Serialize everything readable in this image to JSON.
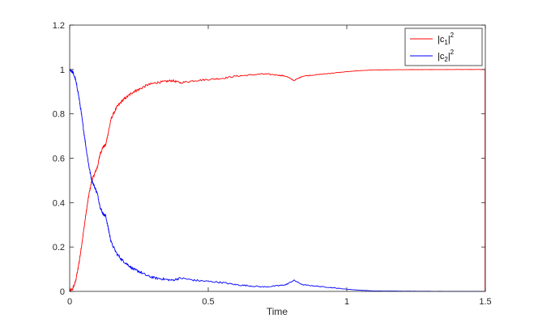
{
  "chart_data": {
    "type": "line",
    "title": "",
    "xlabel": "Time",
    "ylabel": "",
    "xlim": [
      0,
      1.5
    ],
    "ylim": [
      0,
      1.2
    ],
    "x_ticks": [
      "0",
      "0.5",
      "1",
      "1.5"
    ],
    "y_ticks": [
      "0",
      "0.2",
      "0.4",
      "0.6",
      "0.8",
      "1",
      "1.2"
    ],
    "grid": false,
    "legend_position": "top-right",
    "series": [
      {
        "name": "|c1|^2",
        "color": "#ff0000",
        "x": [
          0,
          0.01,
          0.02,
          0.03,
          0.04,
          0.05,
          0.06,
          0.07,
          0.08,
          0.09,
          0.1,
          0.11,
          0.12,
          0.13,
          0.14,
          0.15,
          0.17,
          0.19,
          0.21,
          0.23,
          0.25,
          0.28,
          0.31,
          0.34,
          0.37,
          0.4,
          0.45,
          0.5,
          0.55,
          0.6,
          0.65,
          0.7,
          0.75,
          0.78,
          0.81,
          0.84,
          0.88,
          0.92,
          0.96,
          1.0,
          1.05,
          1.1,
          1.2,
          1.3,
          1.4,
          1.499
        ],
        "y": [
          0.0,
          0.01,
          0.04,
          0.1,
          0.18,
          0.27,
          0.36,
          0.44,
          0.5,
          0.53,
          0.56,
          0.62,
          0.65,
          0.66,
          0.72,
          0.78,
          0.83,
          0.86,
          0.88,
          0.9,
          0.91,
          0.93,
          0.94,
          0.945,
          0.95,
          0.94,
          0.95,
          0.955,
          0.96,
          0.97,
          0.975,
          0.98,
          0.975,
          0.97,
          0.95,
          0.97,
          0.975,
          0.98,
          0.985,
          0.99,
          0.995,
          0.998,
          0.999,
          0.9995,
          0.9998,
          0.9999
        ]
      },
      {
        "name": "|c2|^2",
        "color": "#0000ff",
        "x": [
          0,
          0.01,
          0.02,
          0.03,
          0.04,
          0.05,
          0.06,
          0.07,
          0.08,
          0.09,
          0.1,
          0.11,
          0.12,
          0.13,
          0.14,
          0.15,
          0.17,
          0.19,
          0.21,
          0.23,
          0.25,
          0.28,
          0.31,
          0.34,
          0.37,
          0.4,
          0.45,
          0.5,
          0.55,
          0.6,
          0.65,
          0.7,
          0.75,
          0.78,
          0.81,
          0.84,
          0.88,
          0.92,
          0.96,
          1.0,
          1.05,
          1.1,
          1.2,
          1.3,
          1.4,
          1.499
        ],
        "y": [
          1.0,
          0.99,
          0.96,
          0.9,
          0.82,
          0.73,
          0.64,
          0.56,
          0.5,
          0.47,
          0.44,
          0.38,
          0.35,
          0.34,
          0.28,
          0.22,
          0.17,
          0.14,
          0.12,
          0.1,
          0.09,
          0.07,
          0.06,
          0.055,
          0.05,
          0.06,
          0.05,
          0.045,
          0.04,
          0.03,
          0.025,
          0.02,
          0.025,
          0.03,
          0.05,
          0.03,
          0.025,
          0.02,
          0.015,
          0.01,
          0.005,
          0.002,
          0.001,
          0.0005,
          0.0002,
          0.0001
        ]
      }
    ],
    "legend": [
      {
        "base": "|c",
        "sub": "1",
        "mid": "|",
        "sup": "2",
        "color": "#ff0000"
      },
      {
        "base": "|c",
        "sub": "2",
        "mid": "|",
        "sup": "2",
        "color": "#0000ff"
      }
    ]
  }
}
